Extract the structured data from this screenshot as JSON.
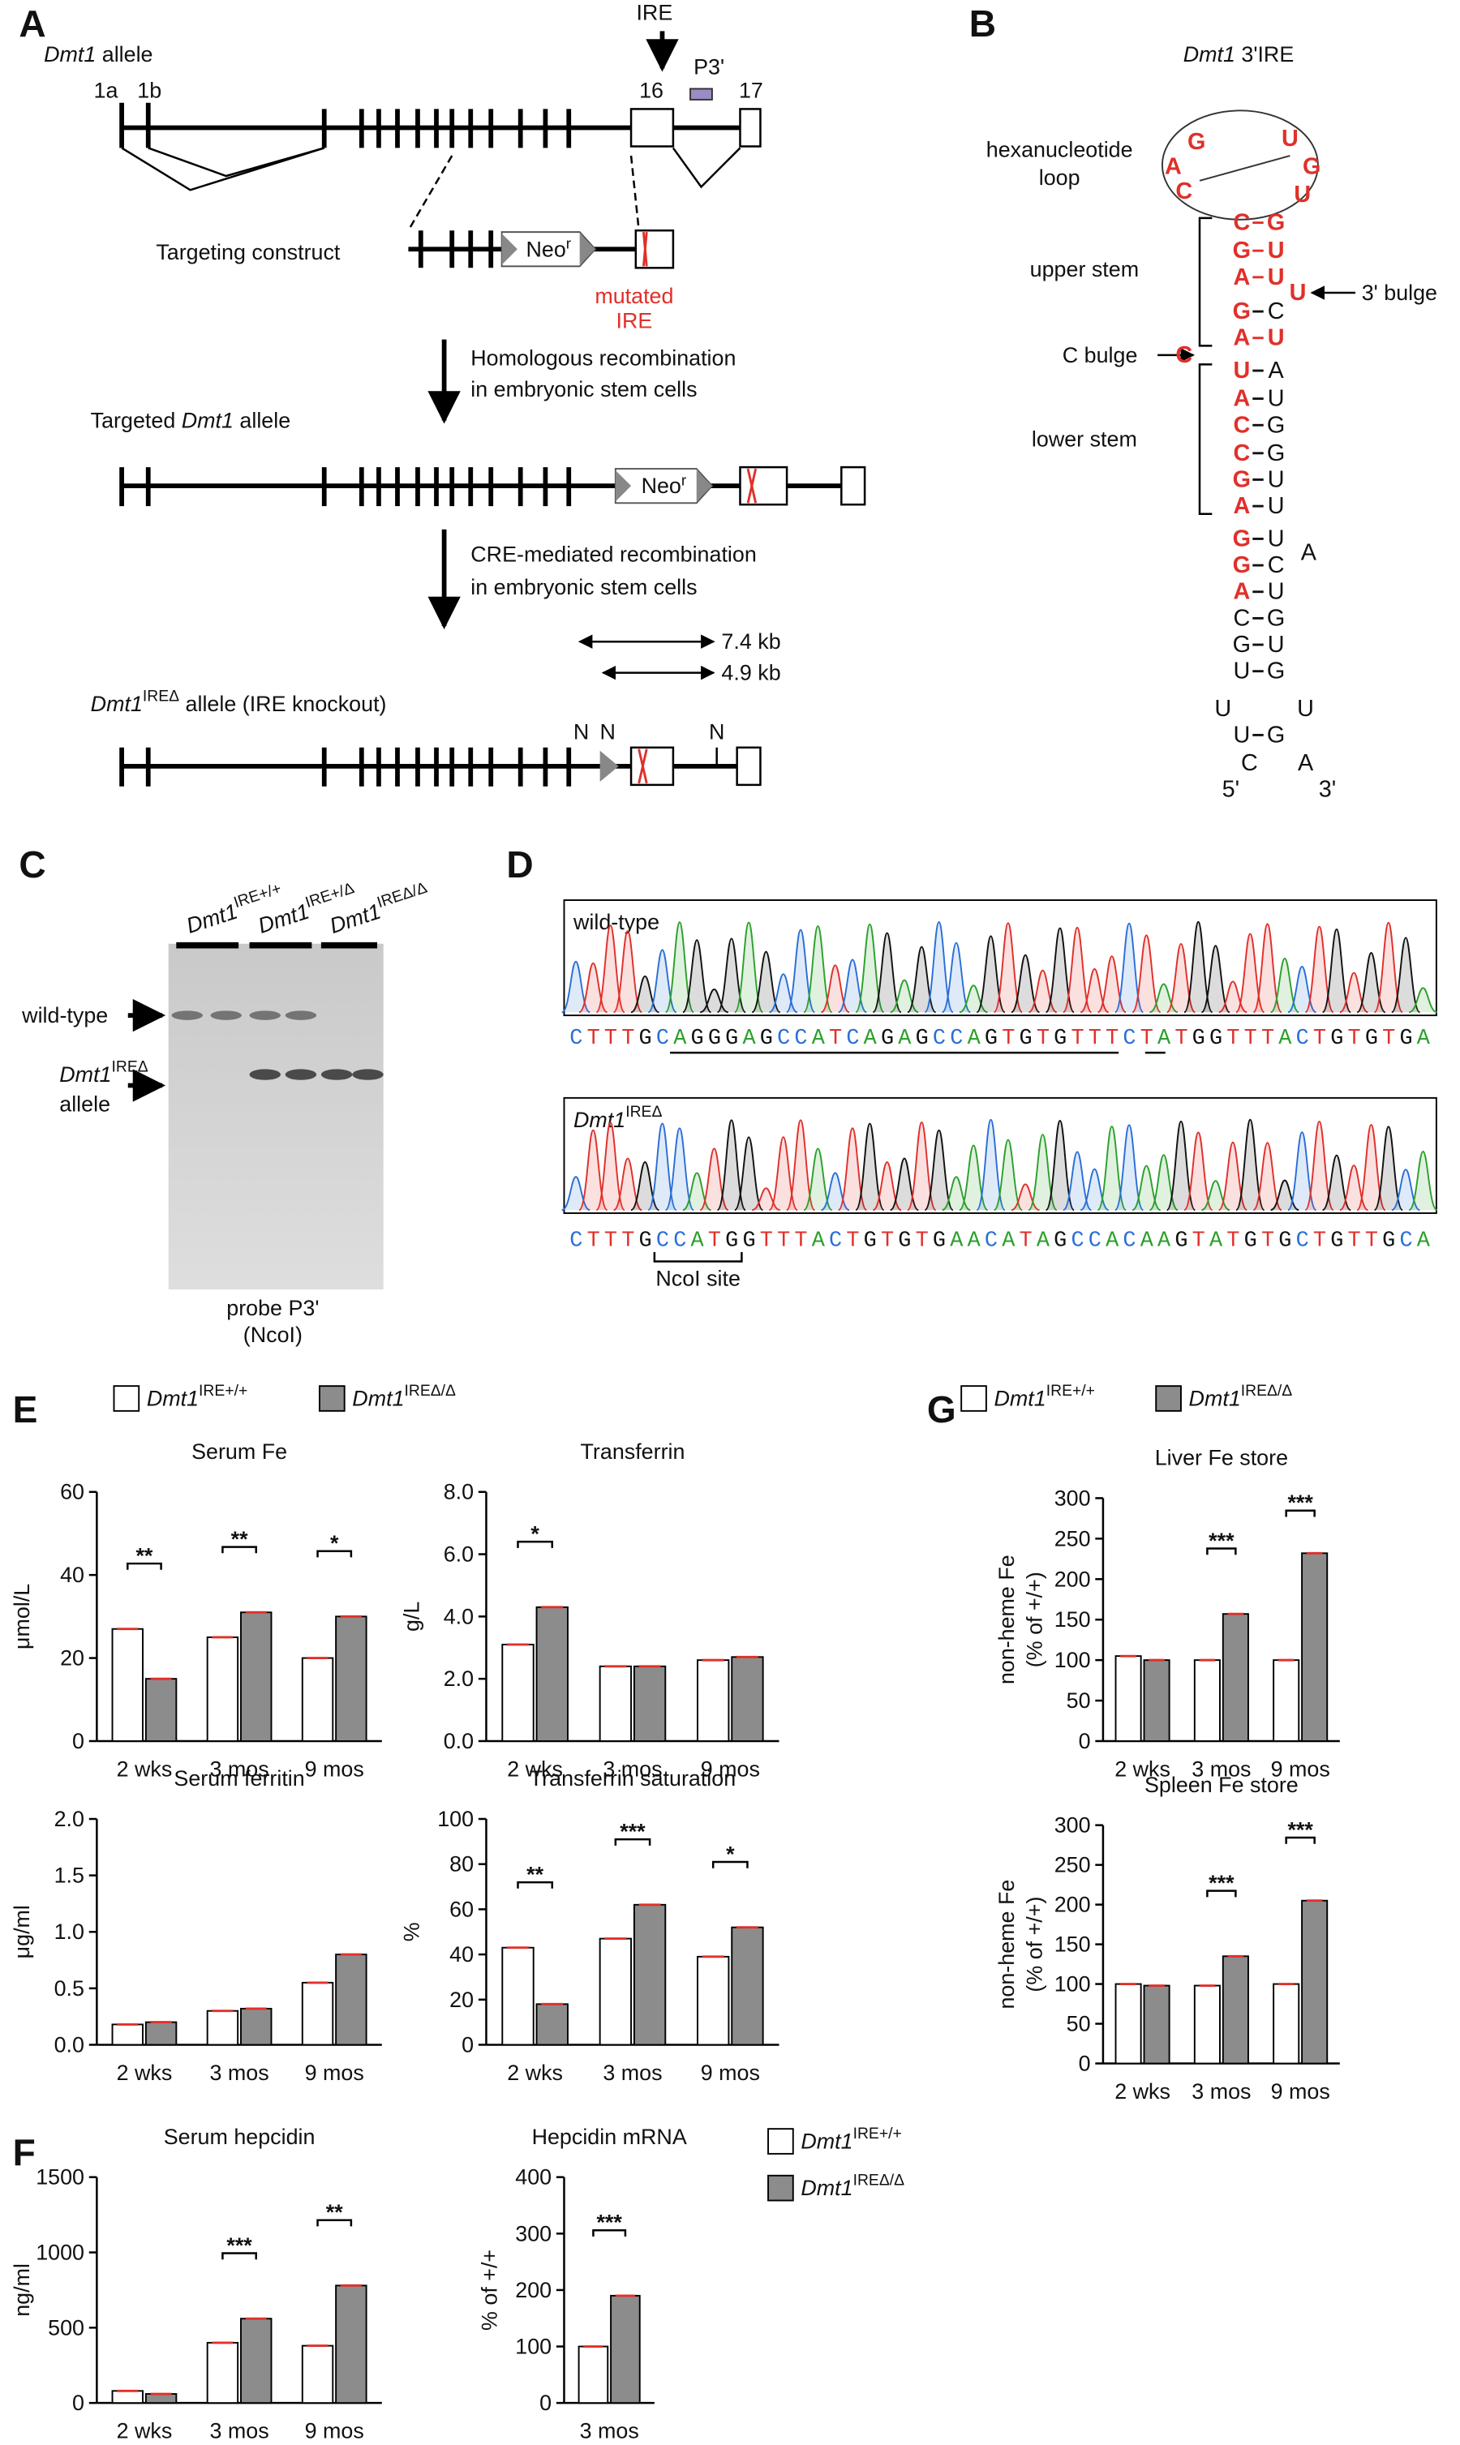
{
  "panel_labels": [
    "A",
    "B",
    "C",
    "D",
    "E",
    "F",
    "G"
  ],
  "panel_a": {
    "allele": "Dmt1 allele",
    "exon_1a": "1a",
    "exon_1b": "1b",
    "ire": "IRE",
    "probe": "P3'",
    "exon_16": "16",
    "exon_17": "17",
    "construct": "Targeting construct",
    "neo": "Neor",
    "mutated": [
      "mutated",
      "IRE"
    ],
    "step1": [
      "Homologous recombination",
      "in embryonic stem cells"
    ],
    "targeted": "Targeted Dmt1 allele",
    "neo2": "Neor",
    "step2": [
      "CRE-mediated recombination",
      "in embryonic stem cells"
    ],
    "kb1": "7.4 kb",
    "kb2": "4.9 kb",
    "ko_allele": "Dmt1IREΔ allele (IRE knockout)",
    "sites": [
      "N",
      "N",
      "N"
    ]
  },
  "ire": {
    "title": "Dmt1 3'IRE",
    "loop_label": [
      "hexanucleotide",
      "loop"
    ],
    "upper_stem": "upper stem",
    "bulge_3": "3' bulge",
    "c_bulge": "C bulge",
    "lower_stem": "lower stem",
    "loop": [
      "G",
      "U",
      "A",
      "G",
      "C",
      "U"
    ],
    "stem": [
      [
        "C",
        "G"
      ],
      [
        "G",
        "U"
      ],
      [
        "A",
        "U"
      ],
      [
        "G",
        "C"
      ],
      [
        "A",
        "U"
      ],
      [
        "U",
        "A"
      ],
      [
        "A",
        "U"
      ],
      [
        "C",
        "G"
      ],
      [
        "C",
        "G"
      ],
      [
        "G",
        "U"
      ],
      [
        "A",
        "U"
      ],
      [
        "G",
        "U"
      ],
      [
        "G",
        "C"
      ],
      [
        "A",
        "U"
      ],
      [
        "C",
        "G"
      ],
      [
        "G",
        "U"
      ],
      [
        "U",
        "G"
      ],
      [
        "U",
        "G"
      ]
    ],
    "extra": [
      "U",
      "C",
      "A",
      "U",
      "U",
      "C",
      "A",
      "5'",
      "3'"
    ]
  },
  "blot": {
    "lanes": [
      "Dmt1IRE+/+",
      "Dmt1IRE+/Δ",
      "Dmt1IREΔ/Δ"
    ],
    "wild_type": "wild-type",
    "mutant": [
      "Dmt1IREΔ",
      "allele"
    ],
    "probe": [
      "probe P3'",
      "(NcoI)"
    ]
  },
  "sequencing": {
    "wt_label": "wild-type",
    "wt_seq": "CTTTGCAGGGAGCCATCAGAGCCAGTGTGTTTCTATGGTTTACTGTGTGA",
    "ko_label": "Dmt1IREΔ",
    "ko_seq": "CTTTGCCATGGTTTACTGTGTGAACATAGCCACAAGTATGTGCTGTTGCA",
    "site": "NcoI site"
  },
  "legends": {
    "E": [
      "Dmt1IRE+/+",
      "Dmt1IREΔ/Δ"
    ],
    "F": [
      "Dmt1IRE+/+",
      "Dmt1IREΔ/Δ"
    ],
    "G": [
      "Dmt1IRE+/+",
      "Dmt1IREΔ/Δ"
    ]
  },
  "chart_data": [
    {
      "type": "bar",
      "title": "Serum Fe",
      "ylabel": "μmol/L",
      "categories": [
        "2 wks",
        "3 mos",
        "9 mos"
      ],
      "series": [
        {
          "color": "#ffffff",
          "values": [
            27,
            25,
            20
          ]
        },
        {
          "color": "#8c8c8c",
          "values": [
            15,
            31,
            30
          ]
        }
      ],
      "significance": [
        "**",
        "**",
        "*"
      ],
      "ylim": [
        0,
        60
      ],
      "yticks": [
        0,
        20,
        40,
        60
      ]
    },
    {
      "type": "bar",
      "title": "Transferrin",
      "ylabel": "g/L",
      "categories": [
        "2 wks",
        "3 mos",
        "9 mos"
      ],
      "series": [
        {
          "color": "#ffffff",
          "values": [
            3.1,
            2.4,
            2.6
          ]
        },
        {
          "color": "#8c8c8c",
          "values": [
            4.3,
            2.4,
            2.7
          ]
        }
      ],
      "significance": [
        "*",
        null,
        null
      ],
      "ylim": [
        0,
        8
      ],
      "yticks": [
        {
          "value": 0,
          "label": "0.0"
        },
        {
          "value": 2,
          "label": "2.0"
        },
        {
          "value": 4,
          "label": "4.0"
        },
        {
          "value": 6,
          "label": "6.0"
        },
        {
          "value": 8,
          "label": "8.0"
        }
      ]
    },
    {
      "type": "bar",
      "title": "Serum ferritin",
      "ylabel": "μg/ml",
      "categories": [
        "2 wks",
        "3 mos",
        "9 mos"
      ],
      "series": [
        {
          "color": "#ffffff",
          "values": [
            0.18,
            0.3,
            0.55
          ]
        },
        {
          "color": "#8c8c8c",
          "values": [
            0.2,
            0.32,
            0.8
          ]
        }
      ],
      "significance": [
        null,
        null,
        null
      ],
      "ylim": [
        0,
        2
      ],
      "yticks": [
        {
          "value": 0,
          "label": "0.0"
        },
        {
          "value": 0.5,
          "label": "0.5"
        },
        {
          "value": 1,
          "label": "1.0"
        },
        {
          "value": 1.5,
          "label": "1.5"
        },
        {
          "value": 2,
          "label": "2.0"
        }
      ]
    },
    {
      "type": "bar",
      "title": "Transferrin saturation",
      "ylabel": "%",
      "categories": [
        "2 wks",
        "3 mos",
        "9 mos"
      ],
      "series": [
        {
          "color": "#ffffff",
          "values": [
            43,
            47,
            39
          ]
        },
        {
          "color": "#8c8c8c",
          "values": [
            18,
            62,
            52
          ]
        }
      ],
      "significance": [
        "**",
        "***",
        "*"
      ],
      "ylim": [
        0,
        100
      ],
      "yticks": [
        0,
        20,
        40,
        60,
        80,
        100
      ]
    },
    {
      "type": "bar",
      "title": "Serum hepcidin",
      "ylabel": "ng/ml",
      "categories": [
        "2 wks",
        "3 mos",
        "9 mos"
      ],
      "series": [
        {
          "color": "#ffffff",
          "values": [
            80,
            400,
            380
          ]
        },
        {
          "color": "#8c8c8c",
          "values": [
            60,
            560,
            780
          ]
        }
      ],
      "significance": [
        null,
        "***",
        "**"
      ],
      "ylim": [
        0,
        1500
      ],
      "yticks": [
        0,
        500,
        1000,
        1500
      ]
    },
    {
      "type": "bar",
      "title": "Hepcidin mRNA",
      "ylabel": "% of +/+",
      "categories": [
        "3 mos"
      ],
      "series": [
        {
          "color": "#ffffff",
          "values": [
            100
          ]
        },
        {
          "color": "#8c8c8c",
          "values": [
            190
          ]
        }
      ],
      "significance": [
        "***"
      ],
      "ylim": [
        0,
        400
      ],
      "yticks": [
        0,
        100,
        200,
        300,
        400
      ]
    },
    {
      "type": "bar",
      "title": "Liver Fe store",
      "ylabel": [
        "non-heme Fe",
        "(% of +/+)"
      ],
      "categories": [
        "2 wks",
        "3 mos",
        "9 mos"
      ],
      "series": [
        {
          "color": "#ffffff",
          "values": [
            105,
            100,
            100
          ]
        },
        {
          "color": "#8c8c8c",
          "values": [
            100,
            157,
            232
          ]
        }
      ],
      "significance": [
        null,
        "***",
        "***"
      ],
      "ylim": [
        0,
        300
      ],
      "yticks": [
        0,
        50,
        100,
        150,
        200,
        250,
        300
      ]
    },
    {
      "type": "bar",
      "title": "Spleen Fe store",
      "ylabel": [
        "non-heme Fe",
        "(% of +/+)"
      ],
      "categories": [
        "2 wks",
        "3 mos",
        "9 mos"
      ],
      "series": [
        {
          "color": "#ffffff",
          "values": [
            100,
            98,
            100
          ]
        },
        {
          "color": "#8c8c8c",
          "values": [
            98,
            135,
            205
          ]
        }
      ],
      "significance": [
        null,
        "***",
        "***"
      ],
      "ylim": [
        0,
        300
      ],
      "yticks": [
        0,
        50,
        100,
        150,
        200,
        250,
        300
      ]
    }
  ]
}
